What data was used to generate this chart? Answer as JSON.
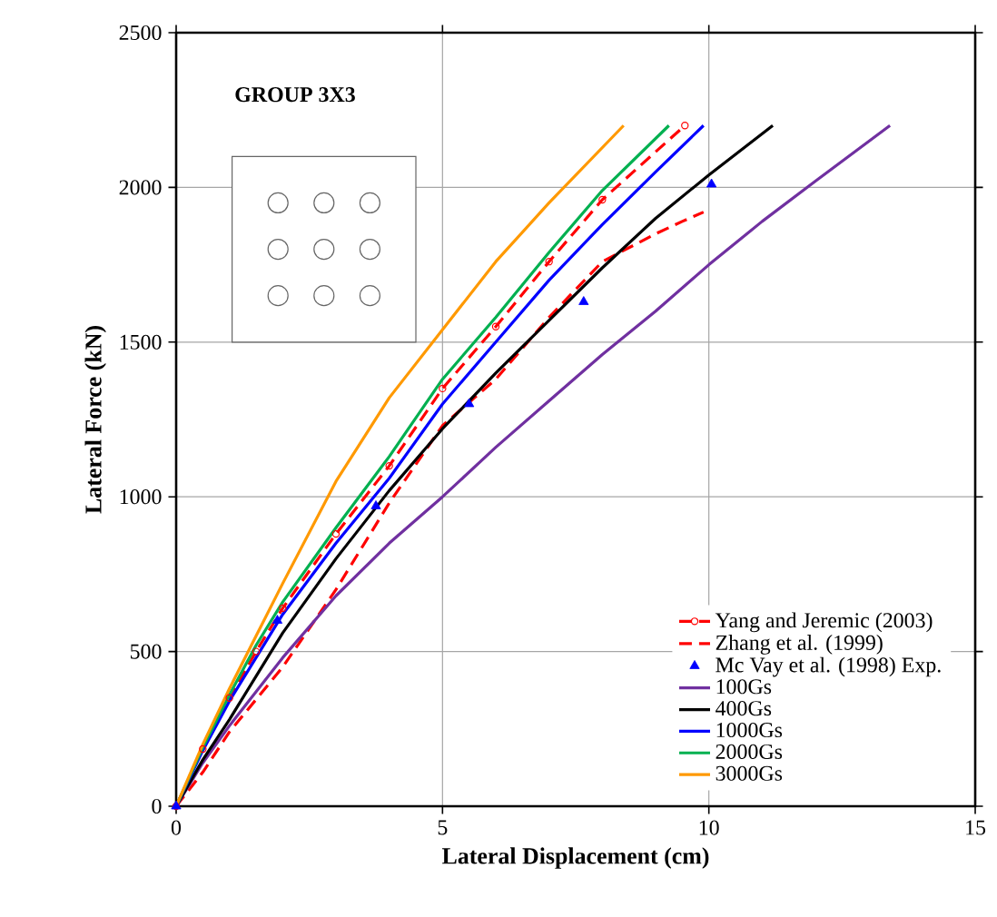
{
  "chart_data": {
    "type": "line",
    "xlabel": "Lateral  Displacement (cm)",
    "ylabel": "Lateral  Force (kN)",
    "annotations": [
      "GROUP 3X3"
    ],
    "xlim": [
      0,
      15
    ],
    "xticks": [
      0,
      5,
      10,
      15
    ],
    "ylim": [
      0,
      2500
    ],
    "yticks": [
      0,
      500,
      1000,
      1500,
      2000,
      2500
    ],
    "grid": true,
    "legend": "bottom right",
    "series": [
      {
        "name": "Yang and Jeremic (2003)",
        "color": "#ff0000",
        "line_style": "dashed",
        "marker": "circle",
        "x": [
          0,
          0.5,
          1,
          1.5,
          2,
          3,
          4,
          5,
          6,
          7,
          8,
          9.55
        ],
        "values": [
          0,
          185,
          350,
          500,
          640,
          880,
          1100,
          1350,
          1550,
          1760,
          1960,
          2200
        ]
      },
      {
        "name": "Zhang et al. (1999)",
        "color": "#ff0000",
        "line_style": "dashed",
        "marker": "none",
        "x": [
          0,
          0.5,
          1,
          2,
          3,
          4,
          5,
          6,
          7,
          8,
          9,
          9.5,
          9.9
        ],
        "values": [
          0,
          110,
          240,
          450,
          700,
          980,
          1230,
          1380,
          1580,
          1760,
          1850,
          1890,
          1920
        ]
      },
      {
        "name": "Mc Vay et al. (1998) Exp.",
        "type": "scatter",
        "color": "#0000ff",
        "marker": "triangle",
        "x": [
          0,
          1.9,
          3.75,
          5.5,
          7.65,
          10.05
        ],
        "values": [
          0,
          600,
          970,
          1300,
          1630,
          2010
        ]
      },
      {
        "name": "100Gs",
        "color": "#7030a0",
        "line_style": "solid",
        "marker": "none",
        "x": [
          0,
          0.5,
          1,
          2,
          3,
          4,
          5,
          6,
          7,
          8,
          9,
          10,
          11,
          12,
          13.4
        ],
        "values": [
          0,
          140,
          260,
          480,
          680,
          850,
          1000,
          1160,
          1310,
          1460,
          1600,
          1750,
          1890,
          2020,
          2200
        ]
      },
      {
        "name": "400Gs",
        "color": "#000000",
        "line_style": "solid",
        "marker": "none",
        "x": [
          0,
          0.5,
          1,
          1.5,
          2,
          3,
          4,
          5,
          6,
          7,
          8,
          9,
          10,
          11.2
        ],
        "values": [
          0,
          150,
          280,
          420,
          560,
          800,
          1020,
          1220,
          1400,
          1570,
          1740,
          1900,
          2040,
          2200
        ]
      },
      {
        "name": "1000Gs",
        "color": "#0000ff",
        "line_style": "solid",
        "marker": "none",
        "x": [
          0,
          0.5,
          1,
          1.5,
          2,
          3,
          4,
          5,
          6,
          7,
          8,
          9,
          9.9
        ],
        "values": [
          0,
          180,
          340,
          480,
          620,
          850,
          1060,
          1300,
          1500,
          1700,
          1880,
          2050,
          2200
        ]
      },
      {
        "name": "2000Gs",
        "color": "#00b050",
        "line_style": "solid",
        "marker": "none",
        "x": [
          0,
          0.5,
          1,
          1.5,
          2,
          3,
          4,
          5,
          6,
          7,
          8,
          9.25
        ],
        "values": [
          0,
          190,
          360,
          520,
          660,
          900,
          1130,
          1380,
          1580,
          1790,
          1990,
          2200
        ]
      },
      {
        "name": "3000Gs",
        "color": "#ff9900",
        "line_style": "solid",
        "marker": "none",
        "x": [
          0,
          0.5,
          1,
          1.5,
          2,
          3,
          4,
          5,
          6,
          7,
          8.4
        ],
        "values": [
          0,
          200,
          380,
          550,
          720,
          1050,
          1320,
          1540,
          1760,
          1950,
          2200
        ]
      }
    ]
  }
}
